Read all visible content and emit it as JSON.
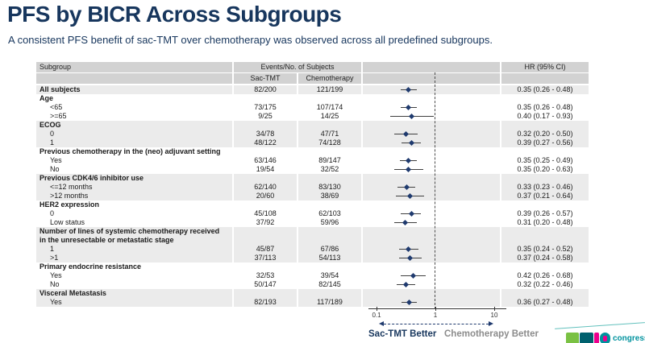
{
  "slide": {
    "title": "PFS by BICR Across Subgroups",
    "subtitle": "A consistent PFS benefit of sac-TMT over chemotherapy was observed across all predefined subgroups."
  },
  "table_headers": {
    "subgroup": "Subgroup",
    "events": "Events/No. of Subjects",
    "sac": "Sac-TMT",
    "chemo": "Chemotherapy",
    "hr": "HR (95% CI)"
  },
  "footer": {
    "left_label": "Sac-TMT Better",
    "right_label": "Chemotherapy Better",
    "logo_text": "congress"
  },
  "colors": {
    "navy": "#17365d",
    "marker": "#1f3a6e",
    "header_gray": "#d2d2d2",
    "row_gray": "#ebebeb",
    "gray_label": "#8c8c8c",
    "logo_green": "#7ac143",
    "logo_teal": "#00616e",
    "logo_magenta": "#ec008c"
  },
  "chart_data": {
    "type": "scatter",
    "subtype": "forest-plot",
    "title": "PFS by BICR Across Subgroups",
    "x_scale": "log",
    "x_ticks": [
      0.1,
      1,
      10
    ],
    "x_tick_labels": [
      "0.1",
      "1",
      "10"
    ],
    "reference_line": 1,
    "legend_left": "Sac-TMT Better",
    "legend_right": "Chemotherapy Better",
    "rows": [
      {
        "t": "data",
        "label": "All subjects",
        "bold": true,
        "indent": false,
        "sac": "82/200",
        "chemo": "121/199",
        "hr_text": "0.35 (0.26 - 0.48)",
        "hr": 0.35,
        "lo": 0.26,
        "hi": 0.48,
        "shade": "a"
      },
      {
        "t": "group",
        "label": "Age",
        "shade": "b"
      },
      {
        "t": "data",
        "label": "<65",
        "indent": true,
        "sac": "73/175",
        "chemo": "107/174",
        "hr_text": "0.35 (0.26 - 0.48)",
        "hr": 0.35,
        "lo": 0.26,
        "hi": 0.48,
        "shade": "b"
      },
      {
        "t": "data",
        "label": ">=65",
        "indent": true,
        "sac": "9/25",
        "chemo": "14/25",
        "hr_text": "0.40 (0.17 - 0.93)",
        "hr": 0.4,
        "lo": 0.17,
        "hi": 0.93,
        "shade": "b"
      },
      {
        "t": "group",
        "label": "ECOG",
        "shade": "a"
      },
      {
        "t": "data",
        "label": "0",
        "indent": true,
        "sac": "34/78",
        "chemo": "47/71",
        "hr_text": "0.32 (0.20 - 0.50)",
        "hr": 0.32,
        "lo": 0.2,
        "hi": 0.5,
        "shade": "a"
      },
      {
        "t": "data",
        "label": "1",
        "indent": true,
        "sac": "48/122",
        "chemo": "74/128",
        "hr_text": "0.39 (0.27 - 0.56)",
        "hr": 0.39,
        "lo": 0.27,
        "hi": 0.56,
        "shade": "a"
      },
      {
        "t": "group",
        "label": "Previous chemotherapy in the (neo) adjuvant setting",
        "shade": "b"
      },
      {
        "t": "data",
        "label": "Yes",
        "indent": true,
        "sac": "63/146",
        "chemo": "89/147",
        "hr_text": "0.35 (0.25 - 0.49)",
        "hr": 0.35,
        "lo": 0.25,
        "hi": 0.49,
        "shade": "b"
      },
      {
        "t": "data",
        "label": "No",
        "indent": true,
        "sac": "19/54",
        "chemo": "32/52",
        "hr_text": "0.35 (0.20 - 0.63)",
        "hr": 0.35,
        "lo": 0.2,
        "hi": 0.63,
        "shade": "b"
      },
      {
        "t": "group",
        "label": "Previous CDK4/6 inhibitor use",
        "shade": "a"
      },
      {
        "t": "data",
        "label": "<=12 months",
        "indent": true,
        "sac": "62/140",
        "chemo": "83/130",
        "hr_text": "0.33 (0.23 - 0.46)",
        "hr": 0.33,
        "lo": 0.23,
        "hi": 0.46,
        "shade": "a"
      },
      {
        "t": "data",
        "label": ">12 months",
        "indent": true,
        "sac": "20/60",
        "chemo": "38/69",
        "hr_text": "0.37 (0.21 - 0.64)",
        "hr": 0.37,
        "lo": 0.21,
        "hi": 0.64,
        "shade": "a"
      },
      {
        "t": "group",
        "label": "HER2 expression",
        "shade": "b"
      },
      {
        "t": "data",
        "label": "0",
        "indent": true,
        "sac": "45/108",
        "chemo": "62/103",
        "hr_text": "0.39 (0.26 - 0.57)",
        "hr": 0.39,
        "lo": 0.26,
        "hi": 0.57,
        "shade": "b"
      },
      {
        "t": "data",
        "label": "Low status",
        "indent": true,
        "sac": "37/92",
        "chemo": "59/96",
        "hr_text": "0.31 (0.20 - 0.48)",
        "hr": 0.31,
        "lo": 0.2,
        "hi": 0.48,
        "shade": "b"
      },
      {
        "t": "group",
        "label": "Number of lines of systemic chemotherapy received",
        "shade": "a"
      },
      {
        "t": "group",
        "label": "in the unresectable or metastatic stage",
        "shade": "a"
      },
      {
        "t": "data",
        "label": "1",
        "indent": true,
        "sac": "45/87",
        "chemo": "67/86",
        "hr_text": "0.35 (0.24 - 0.52)",
        "hr": 0.35,
        "lo": 0.24,
        "hi": 0.52,
        "shade": "a"
      },
      {
        "t": "data",
        "label": ">1",
        "indent": true,
        "sac": "37/113",
        "chemo": "54/113",
        "hr_text": "0.37 (0.24 - 0.58)",
        "hr": 0.37,
        "lo": 0.24,
        "hi": 0.58,
        "shade": "a"
      },
      {
        "t": "group",
        "label": "Primary endocrine resistance",
        "shade": "b"
      },
      {
        "t": "data",
        "label": "Yes",
        "indent": true,
        "sac": "32/53",
        "chemo": "39/54",
        "hr_text": "0.42 (0.26 - 0.68)",
        "hr": 0.42,
        "lo": 0.26,
        "hi": 0.68,
        "shade": "b"
      },
      {
        "t": "data",
        "label": "No",
        "indent": true,
        "sac": "50/147",
        "chemo": "82/145",
        "hr_text": "0.32 (0.22 - 0.46)",
        "hr": 0.32,
        "lo": 0.22,
        "hi": 0.46,
        "shade": "b"
      },
      {
        "t": "group",
        "label": "Visceral Metastasis",
        "shade": "a"
      },
      {
        "t": "data",
        "label": "Yes",
        "indent": true,
        "sac": "82/193",
        "chemo": "117/189",
        "hr_text": "0.36 (0.27 - 0.48)",
        "hr": 0.36,
        "lo": 0.27,
        "hi": 0.48,
        "shade": "a"
      }
    ]
  }
}
